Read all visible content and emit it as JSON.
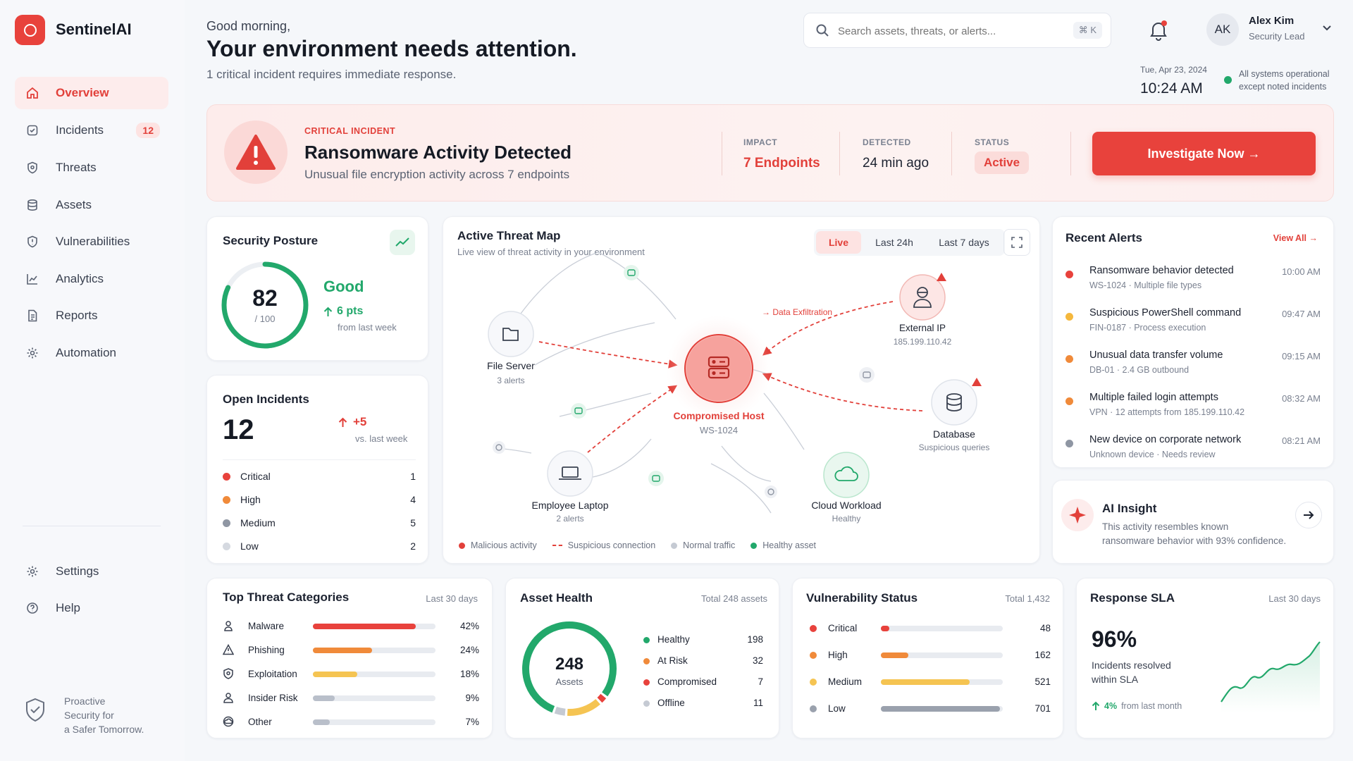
{
  "app": {
    "name": "SentinelAI"
  },
  "sidebar": {
    "items": [
      {
        "label": "Overview",
        "icon": "home-icon"
      },
      {
        "label": "Incidents",
        "icon": "clipboard-check-icon",
        "badge": "12"
      },
      {
        "label": "Threats",
        "icon": "shield-icon"
      },
      {
        "label": "Assets",
        "icon": "database-icon"
      },
      {
        "label": "Vulnerabilities",
        "icon": "shield-alert-icon"
      },
      {
        "label": "Analytics",
        "icon": "chart-icon"
      },
      {
        "label": "Reports",
        "icon": "document-icon"
      },
      {
        "label": "Automation",
        "icon": "gear-icon"
      }
    ],
    "bottom": [
      {
        "label": "Settings",
        "icon": "gear-icon"
      },
      {
        "label": "Help",
        "icon": "help-icon"
      }
    ],
    "tagline": [
      "Proactive",
      "Security for",
      "a Safer Tomorrow."
    ]
  },
  "header": {
    "greeting": "Good morning,",
    "headline": "Your environment needs attention.",
    "subline": "1 critical incident requires immediate response.",
    "search_placeholder": "Search assets, threats, or alerts...",
    "search_shortcut": "⌘ K",
    "user": {
      "initials": "AK",
      "name": "Alex Kim",
      "role": "Security Lead"
    },
    "date": "Tue, Apr 23, 2024",
    "time": "10:24 AM",
    "status_line1": "All systems operational",
    "status_line2": "except noted incidents"
  },
  "incident": {
    "eyebrow": "CRITICAL INCIDENT",
    "title": "Ransomware Activity Detected",
    "desc": "Unusual file encryption activity across 7 endpoints",
    "impact_label": "IMPACT",
    "impact_value": "7 Endpoints",
    "detected_label": "DETECTED",
    "detected_value": "24 min ago",
    "status_label": "STATUS",
    "status_value": "Active",
    "cta": "Investigate Now →"
  },
  "posture": {
    "title": "Security Posture",
    "score": "82",
    "score_max": "/ 100",
    "score_fraction": 0.82,
    "rating": "Good",
    "delta": "6 pts",
    "delta_note": "from last week"
  },
  "open_incidents": {
    "title": "Open Incidents",
    "count": "12",
    "delta": "+5",
    "delta_note": "vs. last week",
    "rows": [
      {
        "label": "Critical",
        "value": "1",
        "color": "#e8423c"
      },
      {
        "label": "High",
        "value": "4",
        "color": "#f08a3a"
      },
      {
        "label": "Medium",
        "value": "5",
        "color": "#8f96a3"
      },
      {
        "label": "Low",
        "value": "2",
        "color": "#d5d9e0"
      }
    ]
  },
  "threat_map": {
    "title": "Active Threat Map",
    "subtitle": "Live view of threat activity in your environment",
    "tabs": [
      "Live",
      "Last 24h",
      "Last 7 days"
    ],
    "nodes": {
      "file_server": {
        "label": "File Server",
        "sub": "3 alerts"
      },
      "compromised": {
        "label": "Compromised Host",
        "sub": "WS-1024"
      },
      "external": {
        "label": "External IP",
        "sub": "185.199.110.42"
      },
      "database": {
        "label": "Database",
        "sub": "Suspicious queries"
      },
      "laptop": {
        "label": "Employee Laptop",
        "sub": "2 alerts"
      },
      "cloud": {
        "label": "Cloud Workload",
        "sub": "Healthy"
      }
    },
    "exfil_label": "→ Data Exfiltration",
    "legend": [
      "Malicious activity",
      "Suspicious connection",
      "Normal traffic",
      "Healthy asset"
    ]
  },
  "recent_alerts": {
    "title": "Recent Alerts",
    "view_all": "View All →",
    "items": [
      {
        "title": "Ransomware behavior detected",
        "meta": "WS-1024 · Multiple file types",
        "time": "10:00 AM",
        "color": "#e8423c"
      },
      {
        "title": "Suspicious PowerShell command",
        "meta": "FIN-0187 · Process execution",
        "time": "09:47 AM",
        "color": "#f5b83d"
      },
      {
        "title": "Unusual data transfer volume",
        "meta": "DB-01 · 2.4 GB outbound",
        "time": "09:15 AM",
        "color": "#f08a3a"
      },
      {
        "title": "Multiple failed login attempts",
        "meta": "VPN · 12 attempts from 185.199.110.42",
        "time": "08:32 AM",
        "color": "#f08a3a"
      },
      {
        "title": "New device on corporate network",
        "meta": "Unknown device · Needs review",
        "time": "08:21 AM",
        "color": "#8f96a3"
      }
    ]
  },
  "ai_insight": {
    "title": "AI Insight",
    "line1": "This activity resembles known",
    "line2": "ransomware behavior with 93% confidence."
  },
  "top_threats": {
    "title": "Top Threat Categories",
    "period": "Last 30 days",
    "rows": [
      {
        "label": "Malware",
        "pct": "42%",
        "value": 42,
        "color": "#e8423c",
        "icon": "bug-icon"
      },
      {
        "label": "Phishing",
        "pct": "24%",
        "value": 24,
        "color": "#f08a3a",
        "icon": "warning-icon"
      },
      {
        "label": "Exploitation",
        "pct": "18%",
        "value": 18,
        "color": "#f5c452",
        "icon": "shield-icon"
      },
      {
        "label": "Insider Risk",
        "pct": "9%",
        "value": 9,
        "color": "#b9bfca",
        "icon": "user-icon"
      },
      {
        "label": "Other",
        "pct": "7%",
        "value": 7,
        "color": "#b9bfca",
        "icon": "cloud-icon"
      }
    ]
  },
  "asset_health": {
    "title": "Asset Health",
    "total": "Total 248 assets",
    "center_value": "248",
    "center_label": "Assets",
    "rows": [
      {
        "label": "Healthy",
        "value": 198,
        "color": "#22a86b"
      },
      {
        "label": "At Risk",
        "value": 32,
        "color": "#f5c452"
      },
      {
        "label": "Compromised",
        "value": 7,
        "color": "#e8423c"
      },
      {
        "label": "Offline",
        "value": 11,
        "color": "#c5cad3"
      }
    ]
  },
  "vuln": {
    "title": "Vulnerability Status",
    "total": "Total 1,432",
    "rows": [
      {
        "label": "Critical",
        "value": 48,
        "color": "#e8423c"
      },
      {
        "label": "High",
        "value": 162,
        "color": "#f08a3a"
      },
      {
        "label": "Medium",
        "value": 521,
        "color": "#f5c452"
      },
      {
        "label": "Low",
        "value": 701,
        "color": "#9aa1ad"
      }
    ]
  },
  "sla": {
    "title": "Response SLA",
    "period": "Last 30 days",
    "value": "96%",
    "label1": "Incidents resolved",
    "label2": "within SLA",
    "delta": "4%",
    "delta_note": "from last month"
  },
  "colors": {
    "accent": "#e8423c",
    "good": "#22a86b",
    "warn": "#f08a3a"
  }
}
